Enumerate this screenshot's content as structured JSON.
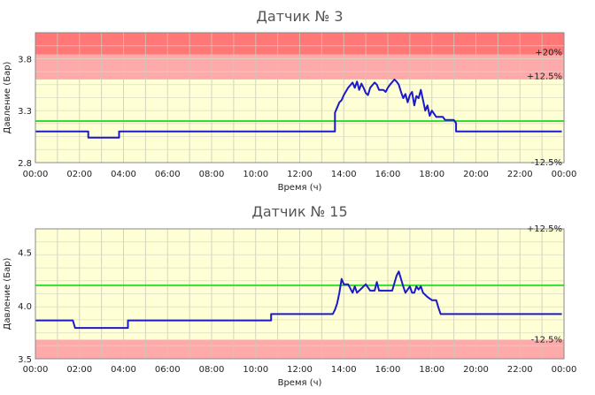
{
  "chart_data": [
    {
      "type": "line",
      "title": "Датчик № 3",
      "xlabel": "Время (ч)",
      "ylabel": "Давление (Бар)",
      "xlim": [
        0,
        24
      ],
      "ylim": [
        2.8,
        4.05
      ],
      "yticks": [
        2.8,
        3.3,
        3.8
      ],
      "ytick_labels": [
        "2.8",
        "3.3",
        "3.8"
      ],
      "xtick_labels": [
        "00:00",
        "02:00",
        "04:00",
        "06:00",
        "08:00",
        "10:00",
        "12:00",
        "14:00",
        "16:00",
        "18:00",
        "20:00",
        "22:00",
        "00:00"
      ],
      "grid": true,
      "threshold_line": {
        "value": 3.2,
        "color": "#33dd33"
      },
      "zones": [
        {
          "from": 2.8,
          "to": 3.6,
          "color": "#ffffd5"
        },
        {
          "from": 3.6,
          "to": 3.84,
          "color": "#ffaaaa"
        },
        {
          "from": 3.84,
          "to": 4.05,
          "color": "#ff7777"
        }
      ],
      "zone_labels": [
        {
          "text": "+20%",
          "y": 3.86
        },
        {
          "text": "+12.5%",
          "y": 3.63
        },
        {
          "text": "-12.5%",
          "y": 2.8
        }
      ],
      "series": [
        {
          "color": "#1a1acc",
          "x": [
            0,
            2.4,
            2.4,
            3.8,
            3.8,
            13.6,
            13.6,
            13.7,
            13.8,
            13.9,
            14.0,
            14.2,
            14.4,
            14.5,
            14.6,
            14.7,
            14.8,
            14.9,
            15.0,
            15.1,
            15.2,
            15.4,
            15.5,
            15.6,
            15.8,
            15.9,
            16.0,
            16.1,
            16.3,
            16.4,
            16.5,
            16.6,
            16.7,
            16.8,
            16.9,
            17.0,
            17.1,
            17.2,
            17.3,
            17.4,
            17.5,
            17.6,
            17.7,
            17.8,
            17.9,
            18.0,
            18.2,
            18.5,
            18.6,
            19.0,
            19.1,
            19.1,
            23.9
          ],
          "values": [
            3.1,
            3.1,
            3.04,
            3.04,
            3.1,
            3.1,
            3.28,
            3.33,
            3.38,
            3.4,
            3.45,
            3.52,
            3.57,
            3.52,
            3.58,
            3.5,
            3.56,
            3.52,
            3.47,
            3.45,
            3.52,
            3.57,
            3.55,
            3.5,
            3.5,
            3.48,
            3.52,
            3.55,
            3.6,
            3.58,
            3.55,
            3.48,
            3.42,
            3.46,
            3.38,
            3.45,
            3.48,
            3.35,
            3.44,
            3.42,
            3.5,
            3.4,
            3.3,
            3.35,
            3.25,
            3.3,
            3.24,
            3.24,
            3.21,
            3.21,
            3.18,
            3.1,
            3.1
          ]
        }
      ]
    },
    {
      "type": "line",
      "title": "Датчик № 15",
      "xlabel": "Время (ч)",
      "ylabel": "Давление (Бар)",
      "xlim": [
        0,
        24
      ],
      "ylim": [
        3.5,
        4.72
      ],
      "yticks": [
        3.5,
        4.0,
        4.5
      ],
      "ytick_labels": [
        "3.5",
        "4.0",
        "4.5"
      ],
      "xtick_labels": [
        "00:00",
        "02:00",
        "04:00",
        "06:00",
        "08:00",
        "10:00",
        "12:00",
        "14:00",
        "16:00",
        "18:00",
        "20:00",
        "22:00",
        "00:00"
      ],
      "grid": true,
      "threshold_line": {
        "value": 4.19,
        "color": "#33dd33"
      },
      "zones": [
        {
          "from": 3.5,
          "to": 3.68,
          "color": "#ffaaaa"
        },
        {
          "from": 3.68,
          "to": 4.72,
          "color": "#ffffd5"
        }
      ],
      "zone_labels": [
        {
          "text": "+12.5%",
          "y": 4.72
        },
        {
          "text": "-12.5%",
          "y": 3.68
        }
      ],
      "series": [
        {
          "color": "#1a1acc",
          "x": [
            0,
            1.7,
            1.8,
            4.2,
            4.2,
            10.7,
            10.7,
            13.5,
            13.6,
            13.7,
            13.8,
            13.9,
            14.0,
            14.2,
            14.4,
            14.5,
            14.6,
            14.8,
            15.0,
            15.2,
            15.4,
            15.5,
            15.6,
            15.8,
            16.0,
            16.2,
            16.4,
            16.5,
            16.6,
            16.7,
            16.8,
            17.0,
            17.1,
            17.2,
            17.3,
            17.4,
            17.5,
            17.6,
            17.8,
            18.0,
            18.2,
            18.3,
            18.4,
            23.9
          ],
          "values": [
            3.86,
            3.86,
            3.79,
            3.79,
            3.86,
            3.86,
            3.92,
            3.92,
            3.96,
            4.02,
            4.12,
            4.25,
            4.2,
            4.2,
            4.12,
            4.18,
            4.12,
            4.16,
            4.2,
            4.14,
            4.14,
            4.22,
            4.14,
            4.14,
            4.14,
            4.14,
            4.28,
            4.32,
            4.25,
            4.18,
            4.12,
            4.18,
            4.12,
            4.12,
            4.18,
            4.15,
            4.18,
            4.12,
            4.08,
            4.05,
            4.05,
            3.98,
            3.92,
            3.92
          ]
        }
      ]
    }
  ]
}
